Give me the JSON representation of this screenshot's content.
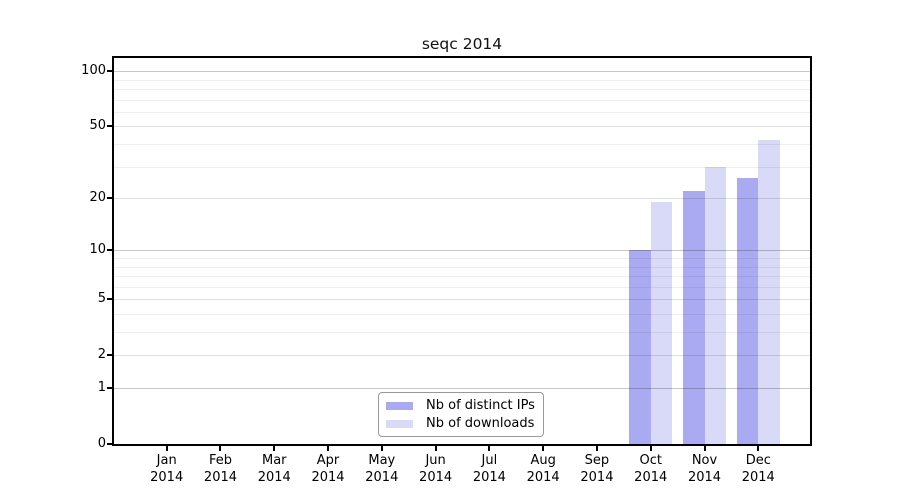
{
  "chart_data": {
    "type": "bar",
    "title": "seqc 2014",
    "categories": [
      "Jan",
      "Feb",
      "Mar",
      "Apr",
      "May",
      "Jun",
      "Jul",
      "Aug",
      "Sep",
      "Oct",
      "Nov",
      "Dec"
    ],
    "year_label": "2014",
    "series": [
      {
        "name": "Nb of distinct IPs",
        "color": "#aaaaf2",
        "values": [
          null,
          null,
          null,
          null,
          null,
          null,
          null,
          null,
          null,
          10,
          22,
          26
        ]
      },
      {
        "name": "Nb of downloads",
        "color": "#d9d9f8",
        "values": [
          null,
          null,
          null,
          null,
          null,
          null,
          null,
          null,
          null,
          19,
          30,
          42
        ]
      }
    ],
    "yscale": "log1p",
    "ylim": [
      0,
      118
    ],
    "yticks": [
      0,
      1,
      2,
      5,
      10,
      20,
      50,
      100
    ],
    "yticks_minor": [
      3,
      4,
      6,
      7,
      8,
      9,
      30,
      40,
      60,
      70,
      80,
      90
    ],
    "yticks_decade": [
      1,
      10,
      100
    ],
    "grid": true,
    "legend_position": "bottom-center",
    "xlabel": "",
    "ylabel": ""
  },
  "colors": {
    "bar_distinct_ips": "#aaaaf2",
    "bar_downloads": "#d9d9f8",
    "grid_decade": "rgba(0,0,0,0.22)",
    "grid_major": "rgba(0,0,0,0.12)",
    "grid_minor": "rgba(0,0,0,0.065)",
    "frame": "#000000",
    "legend_border": "#999999",
    "text": "#000000"
  }
}
